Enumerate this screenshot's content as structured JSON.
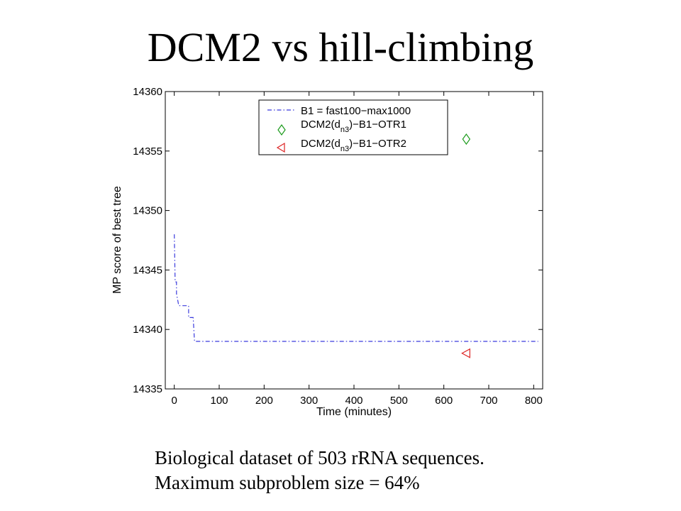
{
  "slide": {
    "title": "DCM2 vs hill-climbing",
    "caption_lines": [
      "Biological dataset of 503 rRNA sequences.",
      "Maximum subproblem size = 64%"
    ]
  },
  "chart_data": {
    "type": "line",
    "title": "",
    "xlabel": "Time (minutes)",
    "ylabel": "MP score of best tree",
    "xlim": [
      -20,
      820
    ],
    "ylim": [
      14335,
      14360
    ],
    "xticks": [
      0,
      100,
      200,
      300,
      400,
      500,
      600,
      700,
      800
    ],
    "yticks": [
      14335,
      14340,
      14345,
      14350,
      14355,
      14360
    ],
    "grid": false,
    "legend_position": "top-right",
    "series": [
      {
        "name": "B1 = fast100−max1000",
        "kind": "step-line",
        "style": "dash-dot",
        "color": "#3b3bdd",
        "points": [
          [
            0,
            14348
          ],
          [
            2,
            14344
          ],
          [
            5,
            14344
          ],
          [
            5,
            14343
          ],
          [
            10,
            14342
          ],
          [
            32,
            14342
          ],
          [
            32,
            14341
          ],
          [
            42,
            14341
          ],
          [
            45,
            14339
          ],
          [
            810,
            14339
          ]
        ]
      },
      {
        "name": "DCM2(d  )−B1−OTR1",
        "name_prefix": "DCM2(d",
        "name_subscript": "n3",
        "name_suffix": ")−B1−OTR1",
        "kind": "marker",
        "marker": "diamond",
        "color": "#1a9a1a",
        "points": [
          [
            650,
            14356
          ]
        ]
      },
      {
        "name": "DCM2(d  )−B1−OTR2",
        "name_prefix": "DCM2(d",
        "name_subscript": "n3",
        "name_suffix": ")−B1−OTR2",
        "kind": "marker",
        "marker": "triangle-left",
        "color": "#dd2222",
        "points": [
          [
            650,
            14338
          ]
        ]
      }
    ]
  }
}
